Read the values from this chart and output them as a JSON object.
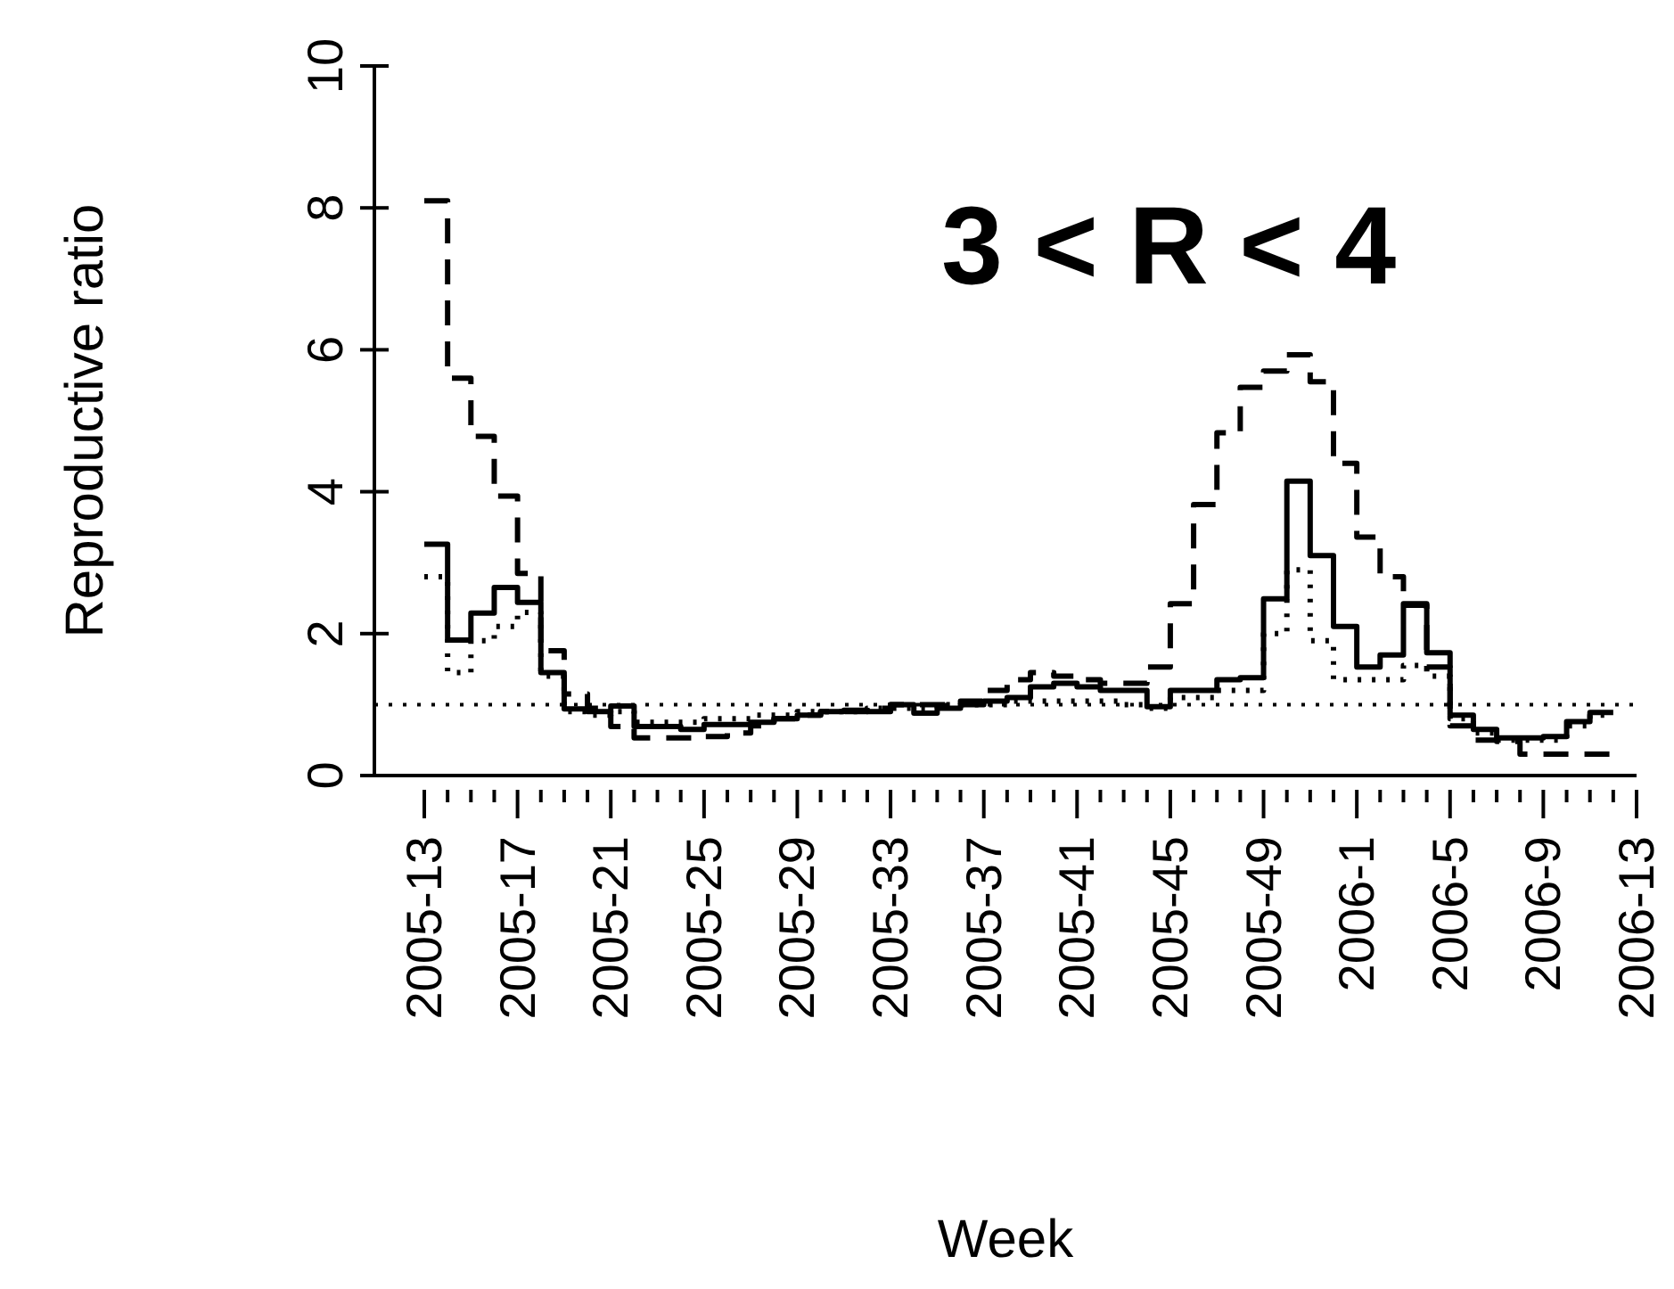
{
  "chart_data": {
    "type": "step",
    "xlabel": "Week",
    "ylabel": "Reproductive ratio",
    "categories": [
      "2005-13",
      null,
      null,
      null,
      "2005-17",
      null,
      null,
      null,
      "2005-21",
      null,
      null,
      null,
      "2005-25",
      null,
      null,
      null,
      "2005-29",
      null,
      null,
      null,
      "2005-33",
      null,
      null,
      null,
      "2005-37",
      null,
      null,
      null,
      "2005-41",
      null,
      null,
      null,
      "2005-45",
      null,
      null,
      null,
      "2005-49",
      null,
      null,
      null,
      "2006-1",
      null,
      null,
      null,
      "2006-5",
      null,
      null,
      null,
      "2006-9",
      null,
      null,
      null,
      "2006-13"
    ],
    "series": [
      {
        "color": "#000000",
        "line_style": "solid",
        "values": [
          3.26,
          1.91,
          2.29,
          2.65,
          2.44,
          1.45,
          0.94,
          0.9,
          0.98,
          0.69,
          0.69,
          0.65,
          0.72,
          0.72,
          0.75,
          0.8,
          0.85,
          0.9,
          0.92,
          0.9,
          1.0,
          0.88,
          0.95,
          1.0,
          1.05,
          1.1,
          1.25,
          1.3,
          1.25,
          1.2,
          1.2,
          0.97,
          1.2,
          1.2,
          1.35,
          1.38,
          2.49,
          4.15,
          3.1,
          2.1,
          1.53,
          1.7,
          2.42,
          1.73,
          0.85,
          0.65,
          0.53,
          0.53,
          0.55,
          0.76,
          0.89,
          0.89,
          null
        ]
      },
      {
        "color": "#000000",
        "line_style": "dashed",
        "values": [
          8.1,
          5.6,
          4.78,
          3.94,
          2.85,
          1.76,
          1.15,
          0.95,
          0.69,
          0.53,
          0.53,
          0.53,
          0.55,
          0.6,
          0.7,
          0.8,
          0.85,
          0.9,
          0.9,
          0.95,
          1.0,
          1.0,
          1.0,
          1.05,
          1.2,
          1.35,
          1.45,
          1.4,
          1.35,
          1.3,
          1.3,
          1.53,
          2.42,
          3.82,
          4.83,
          5.47,
          5.7,
          5.93,
          5.55,
          4.4,
          3.36,
          2.8,
          2.4,
          1.53,
          0.7,
          0.5,
          0.48,
          0.3,
          0.3,
          0.3,
          0.3,
          0.3,
          null
        ]
      },
      {
        "color": "#000000",
        "line_style": "dotted",
        "values": [
          2.8,
          1.45,
          1.9,
          2.1,
          2.3,
          1.4,
          0.9,
          0.85,
          0.9,
          0.75,
          0.75,
          0.75,
          0.8,
          0.8,
          0.85,
          0.85,
          0.9,
          0.9,
          0.9,
          0.95,
          0.95,
          0.95,
          1.0,
          1.0,
          1.0,
          1.05,
          1.05,
          1.05,
          1.05,
          1.05,
          1.0,
          0.95,
          1.1,
          1.1,
          1.2,
          1.2,
          2.0,
          2.9,
          1.9,
          1.35,
          1.35,
          1.35,
          1.55,
          1.4,
          0.8,
          0.6,
          0.5,
          0.5,
          0.5,
          0.7,
          0.85,
          0.85,
          null
        ]
      }
    ],
    "ylim": [
      0,
      10
    ],
    "yticks": [
      0,
      2,
      4,
      6,
      8,
      10
    ],
    "ref_lines": [
      {
        "axis": "y",
        "value": 1,
        "line_style": "dotted",
        "color": "#000000"
      }
    ],
    "annotations": [
      "3 < R < 4"
    ]
  }
}
